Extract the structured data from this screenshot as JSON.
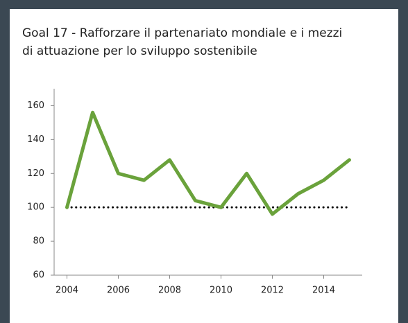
{
  "chart_data": {
    "type": "line",
    "title": [
      "Goal 17 - Rafforzare il partenariato mondiale e i mezzi",
      "di attuazione per lo sviluppo sostenibile"
    ],
    "x": [
      2004,
      2005,
      2006,
      2007,
      2008,
      2009,
      2010,
      2011,
      2012,
      2013,
      2014,
      2015
    ],
    "series": [
      {
        "color": "#6aa23b",
        "style": "solid",
        "values": [
          100,
          156,
          120,
          116,
          128,
          104,
          100,
          120,
          96,
          108,
          116,
          128
        ]
      },
      {
        "color": "#000000",
        "style": "dotted",
        "values": [
          100,
          100,
          100,
          100,
          100,
          100,
          100,
          100,
          100,
          100,
          100,
          100
        ]
      }
    ],
    "xlim": [
      2003.5,
      2015.5
    ],
    "xticks": [
      2004,
      2006,
      2008,
      2010,
      2012,
      2014
    ],
    "ylim": [
      60,
      170
    ],
    "yticks": [
      60,
      80,
      100,
      120,
      140,
      160
    ],
    "grid": false
  }
}
